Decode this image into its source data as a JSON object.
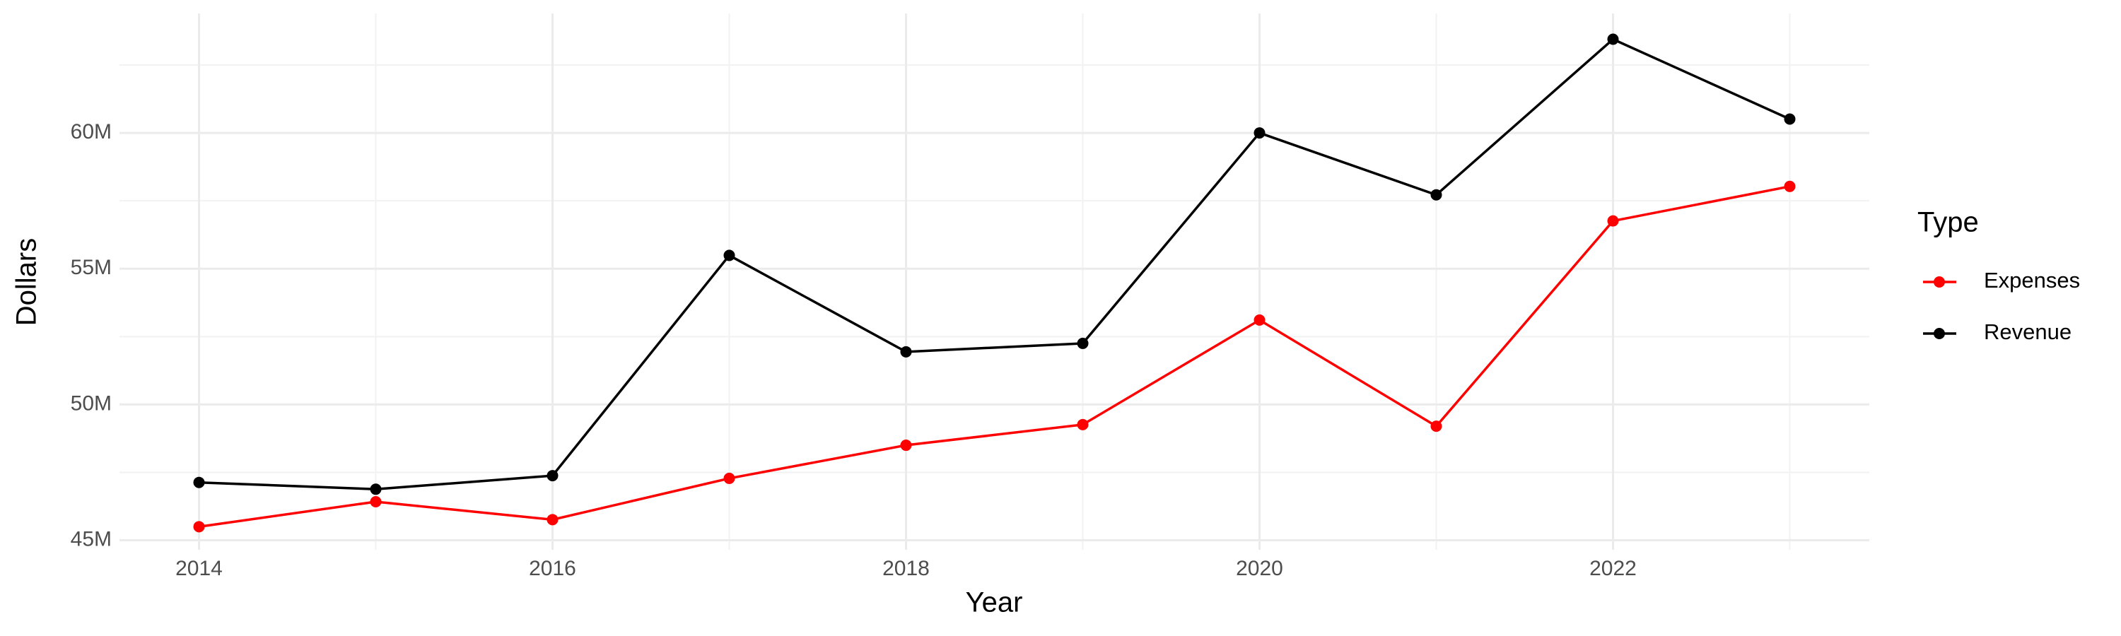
{
  "chart_data": {
    "type": "line",
    "x_label": "Year",
    "y_label": "Dollars",
    "legend_title": "Type",
    "x": [
      2014,
      2015,
      2016,
      2017,
      2018,
      2019,
      2020,
      2021,
      2022,
      2023
    ],
    "series": [
      {
        "name": "Expenses",
        "color": "#ff0000",
        "values": [
          45500000,
          46420000,
          45760000,
          47280000,
          48500000,
          49260000,
          53110000,
          49200000,
          56760000,
          58030000
        ]
      },
      {
        "name": "Revenue",
        "color": "#000000",
        "values": [
          47130000,
          46880000,
          47380000,
          55490000,
          51940000,
          52250000,
          60000000,
          57720000,
          63450000,
          60510000
        ]
      }
    ],
    "xlim": [
      2013.55,
      2023.45
    ],
    "xticks": [
      2014,
      2016,
      2018,
      2020,
      2022
    ],
    "ylim": [
      44650000,
      64400000
    ],
    "yticks": [
      {
        "value": 45000000,
        "label": "45M"
      },
      {
        "value": 50000000,
        "label": "50M"
      },
      {
        "value": 55000000,
        "label": "55M"
      },
      {
        "value": 60000000,
        "label": "60M"
      }
    ],
    "grid": true,
    "legend_position": "right"
  }
}
